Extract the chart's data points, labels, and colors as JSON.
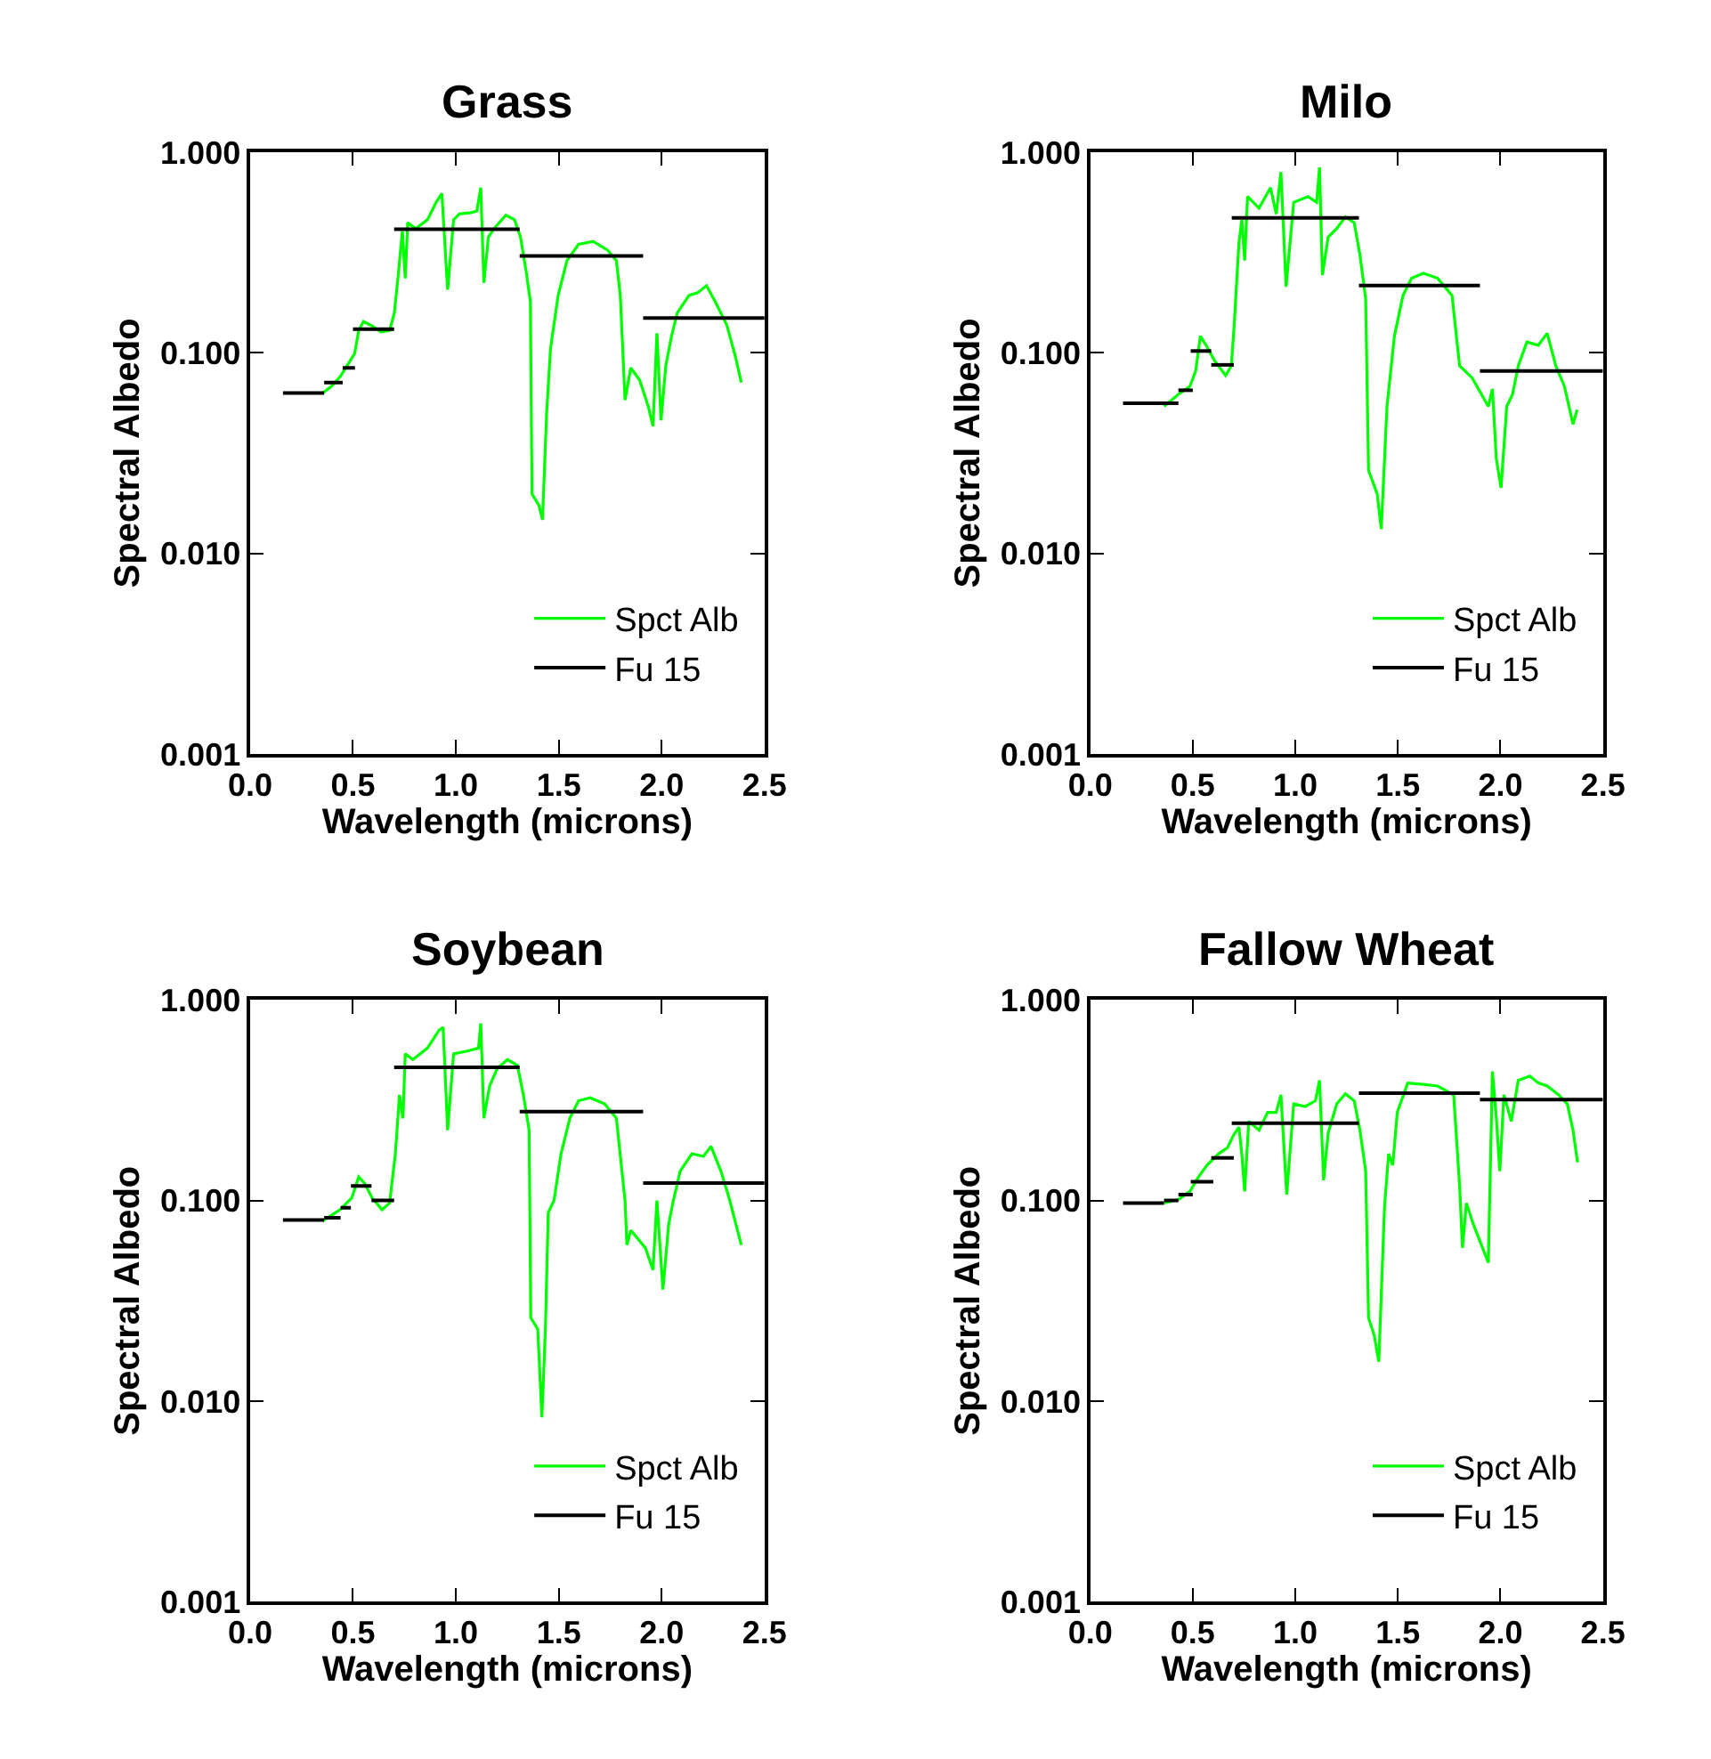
{
  "chart_data": [
    {
      "type": "line",
      "title": "Grass",
      "xlabel": "Wavelength (microns)",
      "ylabel": "Spectral Albedo",
      "log": true,
      "legend": "bottom right",
      "xlim": [
        0,
        2.5
      ],
      "ylim": [
        0.001,
        1
      ],
      "xticks": [
        {
          "value": 0,
          "label": "0.0"
        },
        {
          "value": 0.5,
          "label": "0.5"
        },
        {
          "value": 1,
          "label": "1.0"
        },
        {
          "value": 1.5,
          "label": "1.5"
        },
        {
          "value": 2,
          "label": "2.0"
        },
        {
          "value": 2.5,
          "label": "2.5"
        }
      ],
      "yticks": [
        {
          "value": 0.001,
          "label": "0.001"
        },
        {
          "value": 0.01,
          "label": "0.010"
        },
        {
          "value": 0.1,
          "label": "0.100"
        },
        {
          "value": 1,
          "label": "1.000"
        }
      ],
      "series": [
        {
          "name": "Spct Alb",
          "color": "#00ff00",
          "x": [
            0.353,
            0.395,
            0.438,
            0.48,
            0.508,
            0.528,
            0.551,
            0.593,
            0.636,
            0.678,
            0.701,
            0.72,
            0.74,
            0.754,
            0.766,
            0.805,
            0.862,
            0.904,
            0.932,
            0.96,
            0.989,
            1.017,
            1.073,
            1.102,
            1.121,
            1.136,
            1.158,
            1.186,
            1.243,
            1.285,
            1.314,
            1.342,
            1.362,
            1.37,
            1.404,
            1.421,
            1.441,
            1.46,
            1.497,
            1.54,
            1.596,
            1.667,
            1.737,
            1.78,
            1.799,
            1.822,
            1.85,
            1.893,
            1.935,
            1.958,
            1.977,
            1.997,
            2.02,
            2.048,
            2.076,
            2.133,
            2.175,
            2.218,
            2.26,
            2.316,
            2.359,
            2.387
          ],
          "values": [
            0.063,
            0.068,
            0.076,
            0.089,
            0.099,
            0.129,
            0.143,
            0.136,
            0.127,
            0.129,
            0.158,
            0.244,
            0.403,
            0.235,
            0.445,
            0.416,
            0.46,
            0.562,
            0.622,
            0.206,
            0.46,
            0.492,
            0.499,
            0.509,
            0.665,
            0.223,
            0.377,
            0.416,
            0.485,
            0.46,
            0.377,
            0.252,
            0.18,
            0.0198,
            0.0173,
            0.0147,
            0.05,
            0.105,
            0.193,
            0.288,
            0.347,
            0.359,
            0.325,
            0.288,
            0.193,
            0.058,
            0.084,
            0.073,
            0.054,
            0.043,
            0.125,
            0.046,
            0.086,
            0.121,
            0.158,
            0.193,
            0.199,
            0.216,
            0.18,
            0.138,
            0.095,
            0.071
          ]
        },
        {
          "name": "Fu 15",
          "color": "#000000",
          "x": [
            0.16,
            0.36,
            null,
            0.36,
            0.45,
            null,
            0.45,
            0.51,
            null,
            0.5,
            0.7,
            null,
            0.7,
            1.31,
            null,
            1.31,
            1.91,
            null,
            1.91,
            2.5
          ],
          "values": [
            0.063,
            0.063,
            null,
            0.071,
            0.071,
            null,
            0.084,
            0.084,
            null,
            0.131,
            0.131,
            null,
            0.413,
            0.413,
            null,
            0.304,
            0.304,
            null,
            0.149,
            0.149
          ]
        }
      ]
    },
    {
      "type": "line",
      "title": "Milo",
      "xlabel": "Wavelength (microns)",
      "ylabel": "Spectral Albedo",
      "log": true,
      "legend": "bottom right",
      "xlim": [
        0,
        2.5
      ],
      "ylim": [
        0.001,
        1
      ],
      "xticks": [
        {
          "value": 0,
          "label": "0.0"
        },
        {
          "value": 0.5,
          "label": "0.5"
        },
        {
          "value": 1,
          "label": "1.0"
        },
        {
          "value": 1.5,
          "label": "1.5"
        },
        {
          "value": 2,
          "label": "2.0"
        },
        {
          "value": 2.5,
          "label": "2.5"
        }
      ],
      "yticks": [
        {
          "value": 0.001,
          "label": "0.001"
        },
        {
          "value": 0.01,
          "label": "0.010"
        },
        {
          "value": 0.1,
          "label": "0.100"
        },
        {
          "value": 1,
          "label": "1.000"
        }
      ],
      "series": [
        {
          "name": "Spct Alb",
          "color": "#00ff00",
          "x": [
            0.36,
            0.43,
            0.486,
            0.514,
            0.537,
            0.565,
            0.604,
            0.66,
            0.688,
            0.702,
            0.725,
            0.739,
            0.753,
            0.767,
            0.823,
            0.879,
            0.907,
            0.93,
            0.955,
            0.992,
            1.062,
            1.104,
            1.118,
            1.132,
            1.16,
            1.202,
            1.244,
            1.287,
            1.315,
            1.343,
            1.357,
            1.399,
            1.419,
            1.447,
            1.483,
            1.525,
            1.567,
            1.624,
            1.694,
            1.764,
            1.801,
            1.862,
            1.941,
            1.961,
            1.98,
            2.003,
            2.031,
            2.059,
            2.087,
            2.129,
            2.185,
            2.228,
            2.27,
            2.312,
            2.354,
            2.374
          ],
          "values": [
            0.054,
            0.062,
            0.068,
            0.081,
            0.121,
            0.109,
            0.092,
            0.077,
            0.086,
            0.138,
            0.352,
            0.46,
            0.288,
            0.601,
            0.526,
            0.665,
            0.492,
            0.796,
            0.213,
            0.562,
            0.601,
            0.562,
            0.839,
            0.244,
            0.377,
            0.416,
            0.475,
            0.445,
            0.308,
            0.186,
            0.0259,
            0.0198,
            0.0132,
            0.054,
            0.121,
            0.193,
            0.235,
            0.249,
            0.235,
            0.193,
            0.086,
            0.075,
            0.054,
            0.066,
            0.0296,
            0.0212,
            0.054,
            0.062,
            0.086,
            0.113,
            0.109,
            0.125,
            0.086,
            0.068,
            0.044,
            0.052
          ]
        },
        {
          "name": "Fu 15",
          "color": "#000000",
          "x": [
            0.16,
            0.43,
            null,
            0.43,
            0.5,
            null,
            0.49,
            0.59,
            null,
            0.59,
            0.7,
            null,
            0.69,
            1.31,
            null,
            1.31,
            1.9,
            null,
            1.9,
            2.5
          ],
          "values": [
            0.056,
            0.056,
            null,
            0.065,
            0.065,
            null,
            0.102,
            0.102,
            null,
            0.087,
            0.087,
            null,
            0.47,
            0.47,
            null,
            0.216,
            0.216,
            null,
            0.081,
            0.081
          ]
        }
      ]
    },
    {
      "type": "line",
      "title": "Soybean",
      "xlabel": "Wavelength (microns)",
      "ylabel": "Spectral Albedo",
      "log": true,
      "legend": "bottom right",
      "xlim": [
        0,
        2.5
      ],
      "ylim": [
        0.001,
        1
      ],
      "xticks": [
        {
          "value": 0,
          "label": "0.0"
        },
        {
          "value": 0.5,
          "label": "0.5"
        },
        {
          "value": 1,
          "label": "1.0"
        },
        {
          "value": 1.5,
          "label": "1.5"
        },
        {
          "value": 2,
          "label": "2.0"
        },
        {
          "value": 2.5,
          "label": "2.5"
        }
      ],
      "yticks": [
        {
          "value": 0.001,
          "label": "0.001"
        },
        {
          "value": 0.01,
          "label": "0.010"
        },
        {
          "value": 0.1,
          "label": "0.100"
        },
        {
          "value": 1,
          "label": "1.000"
        }
      ],
      "series": [
        {
          "name": "Spct Alb",
          "color": "#00ff00",
          "x": [
            0.353,
            0.438,
            0.494,
            0.528,
            0.556,
            0.593,
            0.641,
            0.678,
            0.706,
            0.726,
            0.743,
            0.754,
            0.791,
            0.862,
            0.918,
            0.938,
            0.96,
            0.989,
            1.059,
            1.11,
            1.121,
            1.136,
            1.164,
            1.201,
            1.251,
            1.299,
            1.328,
            1.356,
            1.364,
            1.398,
            1.418,
            1.435,
            1.449,
            1.477,
            1.511,
            1.554,
            1.596,
            1.653,
            1.723,
            1.78,
            1.822,
            1.831,
            1.85,
            1.921,
            1.958,
            1.977,
            2.006,
            2.034,
            2.054,
            2.09,
            2.147,
            2.203,
            2.24,
            2.288,
            2.331,
            2.387
          ],
          "values": [
            0.079,
            0.09,
            0.103,
            0.131,
            0.122,
            0.103,
            0.09,
            0.097,
            0.171,
            0.336,
            0.257,
            0.538,
            0.504,
            0.575,
            0.705,
            0.729,
            0.224,
            0.538,
            0.557,
            0.575,
            0.764,
            0.257,
            0.372,
            0.455,
            0.504,
            0.471,
            0.336,
            0.224,
            0.026,
            0.0228,
            0.0083,
            0.0228,
            0.087,
            0.1,
            0.171,
            0.257,
            0.314,
            0.325,
            0.303,
            0.257,
            0.1,
            0.06,
            0.071,
            0.058,
            0.045,
            0.1,
            0.036,
            0.076,
            0.097,
            0.14,
            0.171,
            0.166,
            0.186,
            0.14,
            0.1,
            0.06
          ]
        },
        {
          "name": "Fu 15",
          "color": "#000000",
          "x": [
            0.16,
            0.36,
            null,
            0.36,
            0.44,
            null,
            0.44,
            0.49,
            null,
            0.49,
            0.59,
            null,
            0.59,
            0.7,
            null,
            0.7,
            1.31,
            null,
            1.31,
            1.91,
            null,
            1.91,
            2.5
          ],
          "values": [
            0.08,
            0.08,
            null,
            0.082,
            0.082,
            null,
            0.092,
            0.092,
            null,
            0.118,
            0.118,
            null,
            0.1,
            0.1,
            null,
            0.461,
            0.461,
            null,
            0.277,
            0.277,
            null,
            0.122,
            0.122
          ]
        }
      ]
    },
    {
      "type": "line",
      "title": "Fallow Wheat",
      "xlabel": "Wavelength (microns)",
      "ylabel": "Spectral Albedo",
      "log": true,
      "legend": "bottom right",
      "xlim": [
        0,
        2.5
      ],
      "ylim": [
        0.001,
        1
      ],
      "xticks": [
        {
          "value": 0,
          "label": "0.0"
        },
        {
          "value": 0.5,
          "label": "0.5"
        },
        {
          "value": 1,
          "label": "1.0"
        },
        {
          "value": 1.5,
          "label": "1.5"
        },
        {
          "value": 2,
          "label": "2.0"
        },
        {
          "value": 2.5,
          "label": "2.5"
        }
      ],
      "yticks": [
        {
          "value": 0.001,
          "label": "0.001"
        },
        {
          "value": 0.01,
          "label": "0.010"
        },
        {
          "value": 0.1,
          "label": "0.100"
        },
        {
          "value": 1,
          "label": "1.000"
        }
      ],
      "series": [
        {
          "name": "Spct Alb",
          "color": "#00ff00",
          "x": [
            0.36,
            0.43,
            0.486,
            0.528,
            0.57,
            0.626,
            0.669,
            0.697,
            0.725,
            0.739,
            0.753,
            0.773,
            0.823,
            0.865,
            0.907,
            0.93,
            0.958,
            0.992,
            1.048,
            1.098,
            1.118,
            1.138,
            1.16,
            1.202,
            1.244,
            1.287,
            1.315,
            1.343,
            1.357,
            1.385,
            1.407,
            1.435,
            1.455,
            1.475,
            1.497,
            1.548,
            1.624,
            1.694,
            1.772,
            1.801,
            1.815,
            1.834,
            1.868,
            1.941,
            1.961,
            1.98,
            1.997,
            2.017,
            2.053,
            2.087,
            2.143,
            2.185,
            2.228,
            2.284,
            2.326,
            2.354,
            2.376
          ],
          "values": [
            0.097,
            0.101,
            0.111,
            0.131,
            0.15,
            0.171,
            0.183,
            0.21,
            0.232,
            0.171,
            0.111,
            0.248,
            0.224,
            0.275,
            0.275,
            0.336,
            0.107,
            0.303,
            0.294,
            0.314,
            0.397,
            0.126,
            0.217,
            0.303,
            0.34,
            0.314,
            0.224,
            0.14,
            0.026,
            0.0212,
            0.0157,
            0.094,
            0.171,
            0.15,
            0.275,
            0.385,
            0.379,
            0.372,
            0.336,
            0.118,
            0.058,
            0.097,
            0.076,
            0.049,
            0.44,
            0.257,
            0.14,
            0.336,
            0.248,
            0.397,
            0.417,
            0.385,
            0.372,
            0.336,
            0.303,
            0.224,
            0.155
          ]
        },
        {
          "name": "Fu 15",
          "color": "#000000",
          "x": [
            0.16,
            0.36,
            null,
            0.36,
            0.43,
            null,
            0.43,
            0.5,
            null,
            0.49,
            0.6,
            null,
            0.59,
            0.7,
            null,
            0.69,
            1.31,
            null,
            1.31,
            1.9,
            null,
            1.9,
            2.5
          ],
          "values": [
            0.097,
            0.097,
            null,
            0.1,
            0.1,
            null,
            0.107,
            0.107,
            null,
            0.124,
            0.124,
            null,
            0.163,
            0.163,
            null,
            0.243,
            0.243,
            null,
            0.343,
            0.343,
            null,
            0.318,
            0.318
          ]
        }
      ]
    }
  ]
}
